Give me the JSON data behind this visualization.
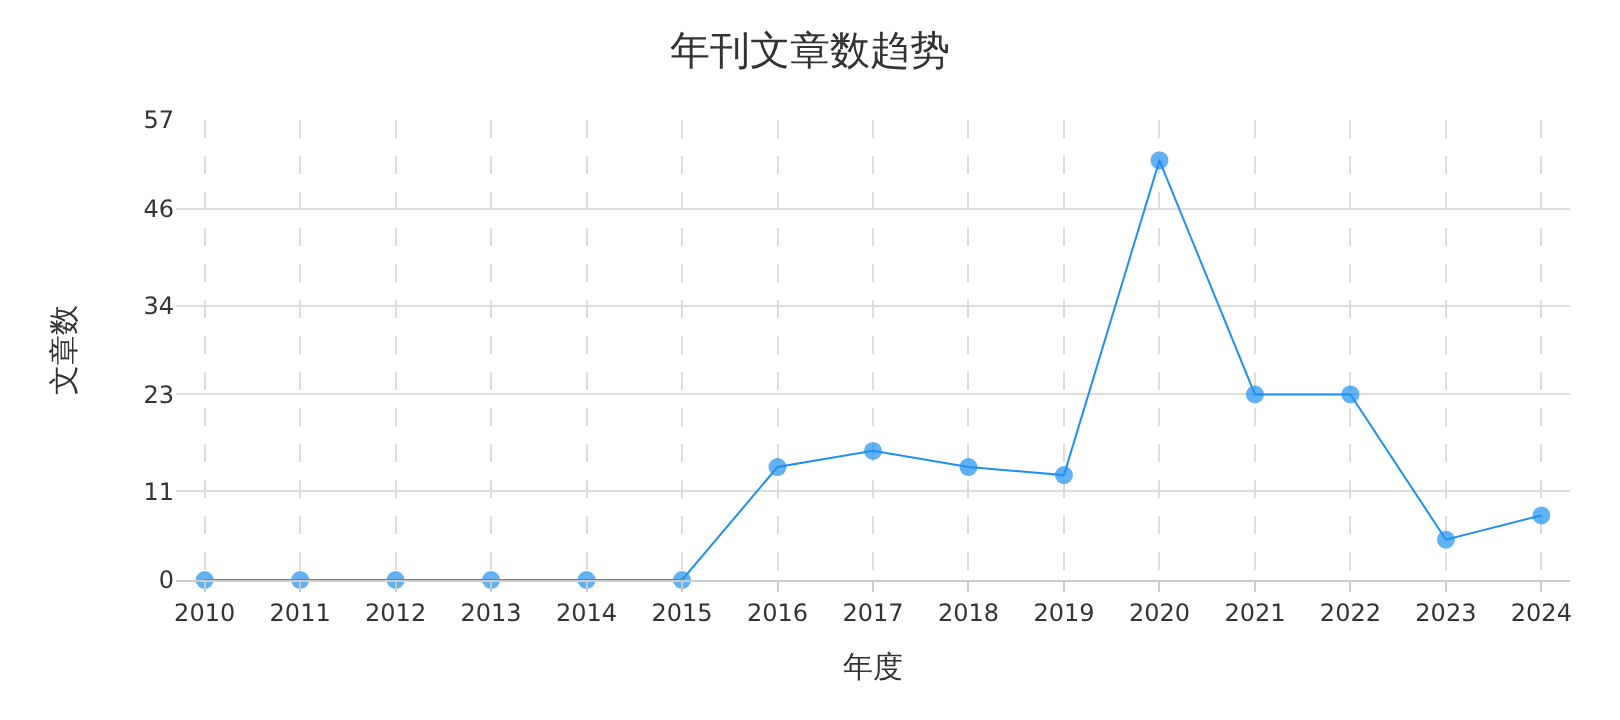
{
  "chart_data": {
    "type": "line",
    "title": "年刊文章数趋势",
    "xlabel": "年度",
    "ylabel": "文章数",
    "categories": [
      "2010",
      "2011",
      "2012",
      "2013",
      "2014",
      "2015",
      "2016",
      "2017",
      "2018",
      "2019",
      "2020",
      "2021",
      "2022",
      "2023",
      "2024"
    ],
    "series": [
      {
        "color": "#1e90f0",
        "values": [
          0,
          0,
          0,
          0,
          0,
          0,
          14,
          16,
          14,
          13,
          52,
          23,
          23,
          5,
          8
        ]
      }
    ],
    "ylim": [
      0,
      57
    ],
    "yticks": [
      0,
      11,
      23,
      34,
      46,
      57
    ],
    "grid": true,
    "marker": "circle",
    "line_style": "solid"
  }
}
